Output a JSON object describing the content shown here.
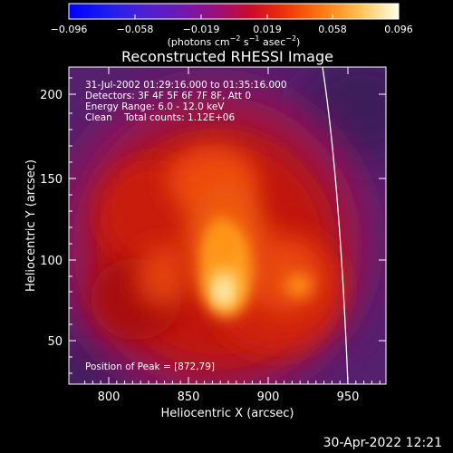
{
  "colorbar": {
    "tick_labels": [
      "−0.096",
      "−0.058",
      "−0.019",
      "0.019",
      "0.058",
      "0.096"
    ],
    "units_label": "(photons cm",
    "units_exp1": "−2",
    "units_mid": " s",
    "units_exp2": "−1",
    "units_end": " asec",
    "units_exp3": "−2",
    "units_close": ")"
  },
  "plot": {
    "title": "Reconstructed RHESSI Image",
    "info_lines": [
      "31-Jul-2002 01:29:16.000 to 01:35:16.000",
      "Detectors: 3F 4F 5F 6F 7F 8F, Att 0",
      "Energy Range: 6.0 - 12.0 keV",
      "Clean    Total counts: 1.12E+06"
    ],
    "peak_label": "Position of Peak = [872,79]",
    "x_axis_label": "Heliocentric X (arcsec)",
    "y_axis_label": "Heliocentric Y (arcsec)",
    "x_ticks": [
      "800",
      "850",
      "900",
      "950"
    ],
    "y_ticks": [
      "50",
      "100",
      "150",
      "200"
    ]
  },
  "timestamp": "30-Apr-2022 12:21",
  "colors": {
    "background": "#000000",
    "text": "#ffffff",
    "limb": "#ffffff"
  }
}
